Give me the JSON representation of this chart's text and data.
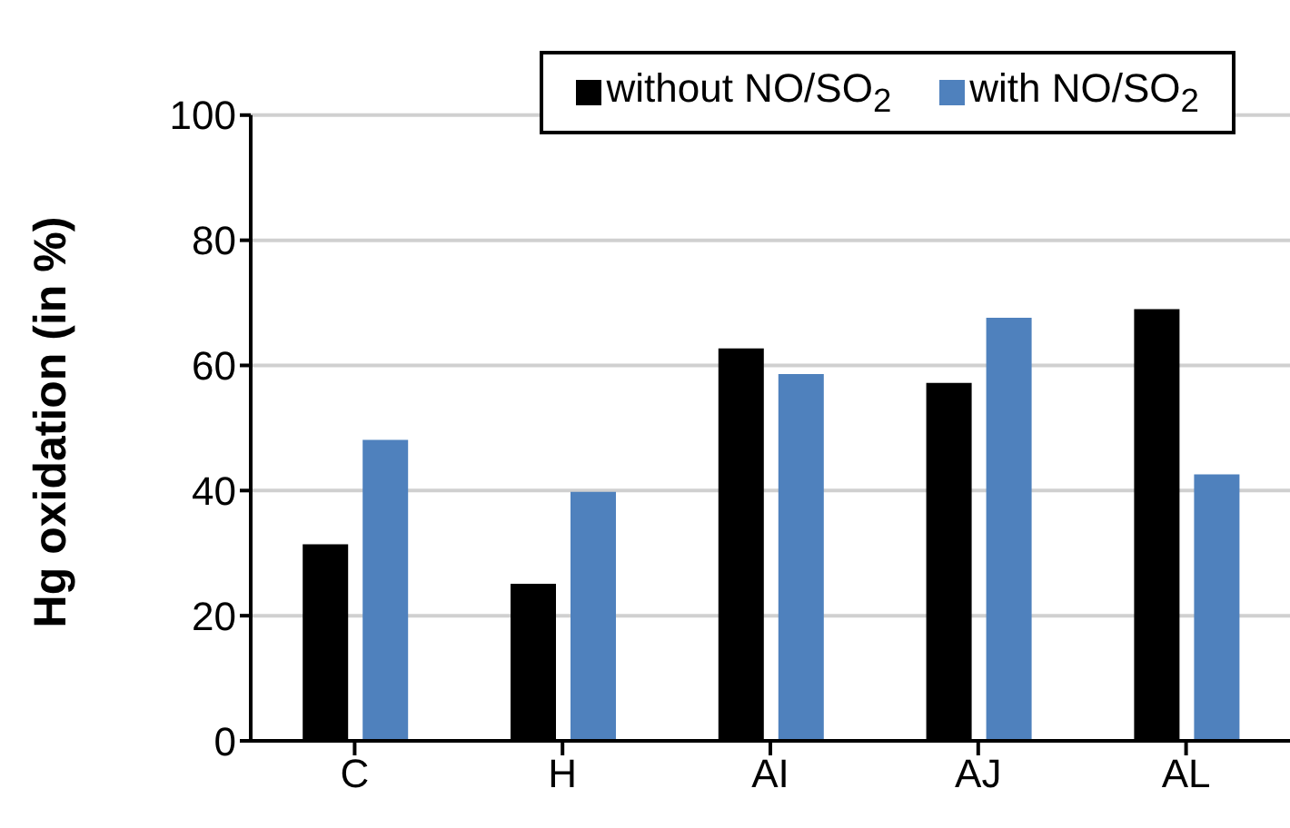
{
  "chart_data": {
    "type": "bar",
    "ylabel": "Hg oxidation (in %)",
    "categories": [
      "C",
      "H",
      "AI",
      "AJ",
      "AL"
    ],
    "series": [
      {
        "name": "without NO/SO$_{2}$",
        "color": "#000000",
        "values": [
          31.4,
          25.1,
          62.7,
          57.2,
          69.0
        ]
      },
      {
        "name": "with NO/SO$_{2}$",
        "color": "#4f81bd",
        "values": [
          48.1,
          39.8,
          58.6,
          67.6,
          42.6
        ]
      }
    ],
    "ylim": [
      0,
      100
    ],
    "yticks": [
      0,
      20,
      40,
      60,
      80,
      100
    ],
    "grid": "y",
    "legend": "top right"
  }
}
